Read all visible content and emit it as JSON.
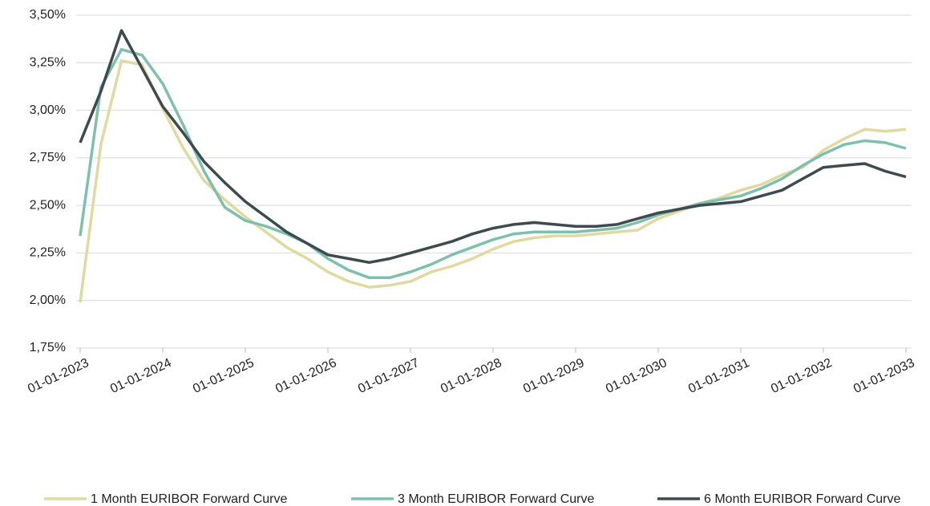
{
  "chart_data": {
    "type": "line",
    "x": [
      2023,
      2023.25,
      2023.5,
      2023.75,
      2024,
      2024.25,
      2024.5,
      2024.75,
      2025,
      2025.25,
      2025.5,
      2025.75,
      2026,
      2026.25,
      2026.5,
      2026.75,
      2027,
      2027.25,
      2027.5,
      2027.75,
      2028,
      2028.25,
      2028.5,
      2028.75,
      2029,
      2029.25,
      2029.5,
      2029.75,
      2030,
      2030.25,
      2030.5,
      2030.75,
      2031,
      2031.25,
      2031.5,
      2031.75,
      2032,
      2032.25,
      2032.5,
      2032.75,
      2033
    ],
    "series": [
      {
        "name": "1 Month EURIBOR Forward Curve",
        "color": "#e0d9a0",
        "values": [
          1.99,
          2.82,
          3.26,
          3.24,
          3.01,
          2.8,
          2.63,
          2.53,
          2.44,
          2.36,
          2.28,
          2.22,
          2.15,
          2.1,
          2.07,
          2.08,
          2.1,
          2.15,
          2.18,
          2.22,
          2.27,
          2.31,
          2.33,
          2.34,
          2.34,
          2.35,
          2.36,
          2.37,
          2.43,
          2.47,
          2.51,
          2.54,
          2.58,
          2.61,
          2.66,
          2.7,
          2.79,
          2.85,
          2.9,
          2.89,
          2.9
        ]
      },
      {
        "name": "3 Month EURIBOR Forward Curve",
        "color": "#7fbfae",
        "values": [
          2.34,
          3.12,
          3.32,
          3.29,
          3.14,
          2.92,
          2.68,
          2.49,
          2.42,
          2.39,
          2.35,
          2.3,
          2.22,
          2.16,
          2.12,
          2.12,
          2.15,
          2.19,
          2.24,
          2.28,
          2.32,
          2.35,
          2.36,
          2.36,
          2.36,
          2.37,
          2.38,
          2.41,
          2.45,
          2.48,
          2.51,
          2.53,
          2.55,
          2.59,
          2.64,
          2.71,
          2.77,
          2.82,
          2.84,
          2.83,
          2.8
        ]
      },
      {
        "name": "6 Month EURIBOR Forward Curve",
        "color": "#3d4a4f",
        "values": [
          2.83,
          3.1,
          3.42,
          3.22,
          3.02,
          2.88,
          2.73,
          2.62,
          2.52,
          2.44,
          2.36,
          2.3,
          2.24,
          2.22,
          2.2,
          2.22,
          2.25,
          2.28,
          2.31,
          2.35,
          2.38,
          2.4,
          2.41,
          2.4,
          2.39,
          2.39,
          2.4,
          2.43,
          2.46,
          2.48,
          2.5,
          2.51,
          2.52,
          2.55,
          2.58,
          2.64,
          2.7,
          2.71,
          2.72,
          2.68,
          2.65
        ]
      }
    ],
    "xlim": [
      2023,
      2033
    ],
    "xticks": [
      {
        "value": 2023,
        "label": "01-01-2023"
      },
      {
        "value": 2024,
        "label": "01-01-2024"
      },
      {
        "value": 2025,
        "label": "01-01-2025"
      },
      {
        "value": 2026,
        "label": "01-01-2026"
      },
      {
        "value": 2027,
        "label": "01-01-2027"
      },
      {
        "value": 2028,
        "label": "01-01-2028"
      },
      {
        "value": 2029,
        "label": "01-01-2029"
      },
      {
        "value": 2030,
        "label": "01-01-2030"
      },
      {
        "value": 2031,
        "label": "01-01-2031"
      },
      {
        "value": 2032,
        "label": "01-01-2032"
      },
      {
        "value": 2033,
        "label": "01-01-2033"
      }
    ],
    "ylim": [
      1.75,
      3.5
    ],
    "yticks": [
      {
        "value": 1.75,
        "label": "1,75%"
      },
      {
        "value": 2.0,
        "label": "2,00%"
      },
      {
        "value": 2.25,
        "label": "2,25%"
      },
      {
        "value": 2.5,
        "label": "2,50%"
      },
      {
        "value": 2.75,
        "label": "2,75%"
      },
      {
        "value": 3.0,
        "label": "3,00%"
      },
      {
        "value": 3.25,
        "label": "3,25%"
      },
      {
        "value": 3.5,
        "label": "3,50%"
      }
    ],
    "grid": true,
    "legend": "bottom"
  }
}
